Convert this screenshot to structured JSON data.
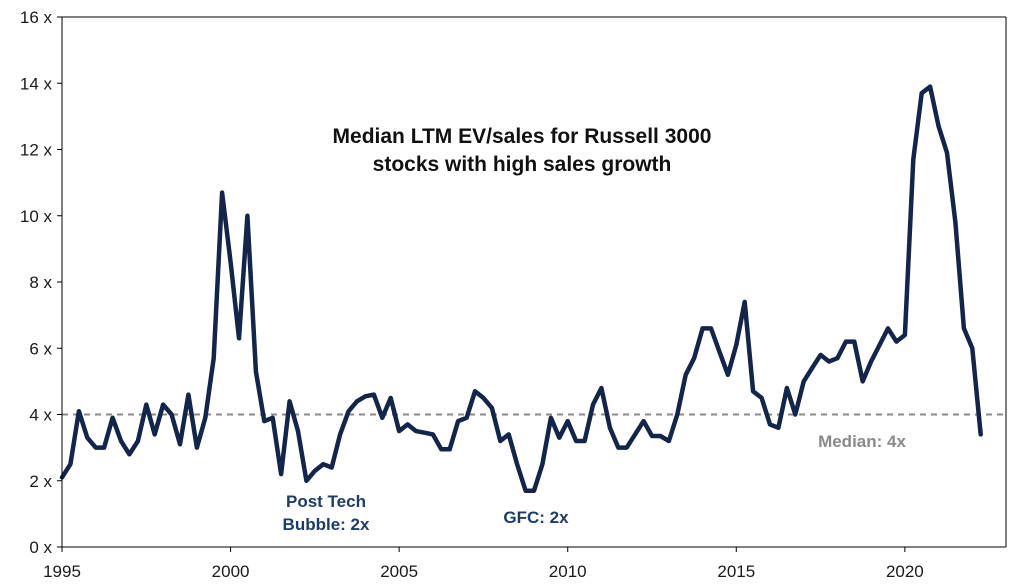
{
  "chart_data": {
    "type": "line",
    "title_lines": [
      "Median LTM EV/sales for Russell 3000",
      "stocks with high sales growth"
    ],
    "xlabel": "",
    "ylabel": "",
    "xlim": [
      1995,
      2023
    ],
    "ylim": [
      0,
      16
    ],
    "x_ticks": [
      1995,
      2000,
      2005,
      2010,
      2015,
      2020
    ],
    "x_tick_labels": [
      "1995",
      "2000",
      "2005",
      "2010",
      "2015",
      "2020"
    ],
    "y_ticks": [
      0,
      2,
      4,
      6,
      8,
      10,
      12,
      14,
      16
    ],
    "y_tick_labels": [
      "0 x",
      "2 x",
      "4 x",
      "6 x",
      "8 x",
      "10 x",
      "12 x",
      "14 x",
      "16 x"
    ],
    "grid": false,
    "legend": "none",
    "series": [
      {
        "color": "#14254a",
        "points": [
          [
            1995.0,
            2.1
          ],
          [
            1995.25,
            2.5
          ],
          [
            1995.5,
            4.1
          ],
          [
            1995.75,
            3.3
          ],
          [
            1996.0,
            3.0
          ],
          [
            1996.25,
            3.0
          ],
          [
            1996.5,
            3.9
          ],
          [
            1996.75,
            3.2
          ],
          [
            1997.0,
            2.8
          ],
          [
            1997.25,
            3.2
          ],
          [
            1997.5,
            4.3
          ],
          [
            1997.75,
            3.4
          ],
          [
            1998.0,
            4.3
          ],
          [
            1998.25,
            4.0
          ],
          [
            1998.5,
            3.1
          ],
          [
            1998.75,
            4.6
          ],
          [
            1999.0,
            3.0
          ],
          [
            1999.25,
            3.9
          ],
          [
            1999.5,
            5.7
          ],
          [
            1999.75,
            10.7
          ],
          [
            2000.0,
            8.6
          ],
          [
            2000.25,
            6.3
          ],
          [
            2000.5,
            10.0
          ],
          [
            2000.75,
            5.3
          ],
          [
            2001.0,
            3.8
          ],
          [
            2001.25,
            3.9
          ],
          [
            2001.5,
            2.2
          ],
          [
            2001.75,
            4.4
          ],
          [
            2002.0,
            3.5
          ],
          [
            2002.25,
            2.0
          ],
          [
            2002.5,
            2.3
          ],
          [
            2002.75,
            2.5
          ],
          [
            2003.0,
            2.4
          ],
          [
            2003.25,
            3.4
          ],
          [
            2003.5,
            4.1
          ],
          [
            2003.75,
            4.4
          ],
          [
            2004.0,
            4.55
          ],
          [
            2004.25,
            4.6
          ],
          [
            2004.5,
            3.9
          ],
          [
            2004.75,
            4.5
          ],
          [
            2005.0,
            3.5
          ],
          [
            2005.25,
            3.7
          ],
          [
            2005.5,
            3.5
          ],
          [
            2005.75,
            3.45
          ],
          [
            2006.0,
            3.4
          ],
          [
            2006.25,
            2.95
          ],
          [
            2006.5,
            2.95
          ],
          [
            2006.75,
            3.8
          ],
          [
            2007.0,
            3.9
          ],
          [
            2007.25,
            4.7
          ],
          [
            2007.5,
            4.5
          ],
          [
            2007.75,
            4.2
          ],
          [
            2008.0,
            3.2
          ],
          [
            2008.25,
            3.4
          ],
          [
            2008.5,
            2.5
          ],
          [
            2008.75,
            1.7
          ],
          [
            2009.0,
            1.7
          ],
          [
            2009.25,
            2.5
          ],
          [
            2009.5,
            3.9
          ],
          [
            2009.75,
            3.3
          ],
          [
            2010.0,
            3.8
          ],
          [
            2010.25,
            3.2
          ],
          [
            2010.5,
            3.2
          ],
          [
            2010.75,
            4.3
          ],
          [
            2011.0,
            4.8
          ],
          [
            2011.25,
            3.6
          ],
          [
            2011.5,
            3.0
          ],
          [
            2011.75,
            3.0
          ],
          [
            2012.0,
            3.4
          ],
          [
            2012.25,
            3.8
          ],
          [
            2012.5,
            3.35
          ],
          [
            2012.75,
            3.35
          ],
          [
            2013.0,
            3.2
          ],
          [
            2013.25,
            4.0
          ],
          [
            2013.5,
            5.2
          ],
          [
            2013.75,
            5.7
          ],
          [
            2014.0,
            6.6
          ],
          [
            2014.25,
            6.6
          ],
          [
            2014.5,
            5.9
          ],
          [
            2014.75,
            5.2
          ],
          [
            2015.0,
            6.1
          ],
          [
            2015.25,
            7.4
          ],
          [
            2015.5,
            4.7
          ],
          [
            2015.75,
            4.5
          ],
          [
            2016.0,
            3.7
          ],
          [
            2016.25,
            3.6
          ],
          [
            2016.5,
            4.8
          ],
          [
            2016.75,
            4.0
          ],
          [
            2017.0,
            5.0
          ],
          [
            2017.25,
            5.4
          ],
          [
            2017.5,
            5.8
          ],
          [
            2017.75,
            5.6
          ],
          [
            2018.0,
            5.7
          ],
          [
            2018.25,
            6.2
          ],
          [
            2018.5,
            6.2
          ],
          [
            2018.75,
            5.0
          ],
          [
            2019.0,
            5.6
          ],
          [
            2019.25,
            6.1
          ],
          [
            2019.5,
            6.6
          ],
          [
            2019.75,
            6.2
          ],
          [
            2020.0,
            6.4
          ],
          [
            2020.25,
            11.7
          ],
          [
            2020.5,
            13.7
          ],
          [
            2020.75,
            13.9
          ],
          [
            2021.0,
            12.7
          ],
          [
            2021.25,
            11.9
          ],
          [
            2021.5,
            9.8
          ],
          [
            2021.75,
            6.6
          ],
          [
            2022.0,
            6.0
          ],
          [
            2022.25,
            3.4
          ]
        ]
      }
    ],
    "reference_line": {
      "y": 4,
      "style": "dashed",
      "color": "#8a8a8a"
    },
    "annotations": [
      {
        "lines": [
          "Post Tech",
          "Bubble: 2x"
        ],
        "color": "#1d3c66"
      },
      {
        "lines": [
          "GFC: 2x"
        ],
        "color": "#1d3c66"
      },
      {
        "lines": [
          "Median: 4x"
        ],
        "color": "#8a8a8a"
      }
    ]
  }
}
